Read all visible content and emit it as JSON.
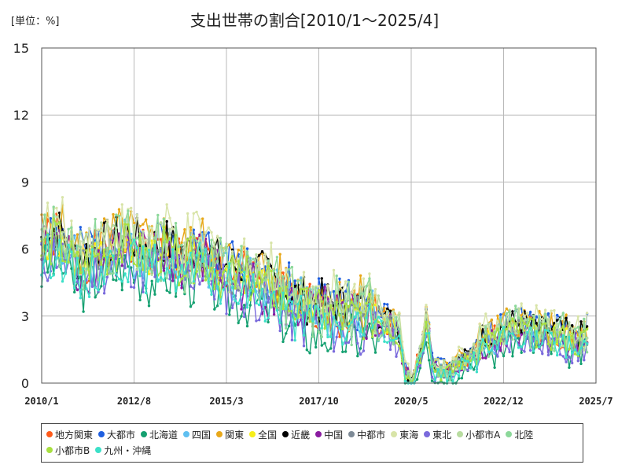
{
  "unit_label": "[単位：%]",
  "chart_data": {
    "type": "line",
    "title": "支出世帯の割合[2010/1～2025/4]",
    "xlabel": "",
    "ylabel": "",
    "x_start": "2010-01",
    "x_end": "2025-04",
    "xlim": [
      "2010-01",
      "2025-07"
    ],
    "ylim": [
      0,
      15
    ],
    "y_ticks": [
      0,
      3,
      6,
      9,
      12,
      15
    ],
    "x_ticks": [
      "2010/1",
      "2012/8",
      "2015/3",
      "2017/10",
      "2020/5",
      "2022/12",
      "2025/7"
    ],
    "grid": true,
    "legend_position": "bottom",
    "approximate_trend": [
      [
        "2010-01",
        6.0
      ],
      [
        "2010-06",
        6.6
      ],
      [
        "2011-01",
        5.2
      ],
      [
        "2011-06",
        5.6
      ],
      [
        "2012-01",
        6.0
      ],
      [
        "2012-06",
        6.2
      ],
      [
        "2013-01",
        5.6
      ],
      [
        "2013-06",
        6.0
      ],
      [
        "2014-01",
        5.4
      ],
      [
        "2014-06",
        5.8
      ],
      [
        "2015-01",
        5.0
      ],
      [
        "2015-06",
        4.8
      ],
      [
        "2016-01",
        4.6
      ],
      [
        "2016-06",
        4.3
      ],
      [
        "2017-01",
        3.6
      ],
      [
        "2017-06",
        3.3
      ],
      [
        "2018-01",
        3.2
      ],
      [
        "2018-06",
        3.0
      ],
      [
        "2019-01",
        3.1
      ],
      [
        "2019-06",
        3.0
      ],
      [
        "2020-01",
        2.2
      ],
      [
        "2020-03",
        0.4
      ],
      [
        "2020-05",
        0.2
      ],
      [
        "2020-08",
        1.2
      ],
      [
        "2020-10",
        3.6
      ],
      [
        "2020-12",
        0.8
      ],
      [
        "2021-03",
        0.5
      ],
      [
        "2021-06",
        0.5
      ],
      [
        "2021-09",
        0.9
      ],
      [
        "2021-12",
        1.1
      ],
      [
        "2022-03",
        1.5
      ],
      [
        "2022-06",
        2.0
      ],
      [
        "2022-09",
        1.9
      ],
      [
        "2023-01",
        2.4
      ],
      [
        "2023-06",
        2.5
      ],
      [
        "2024-01",
        2.1
      ],
      [
        "2024-06",
        2.2
      ],
      [
        "2025-01",
        1.8
      ],
      [
        "2025-04",
        2.1
      ]
    ],
    "series": [
      {
        "name": "地方関東",
        "color": "#ff5a1a",
        "offset": 0.1,
        "amp": 0.9,
        "seed": 1
      },
      {
        "name": "大都市",
        "color": "#1f5fe0",
        "offset": 0.5,
        "amp": 1.0,
        "seed": 2
      },
      {
        "name": "北海道",
        "color": "#14a070",
        "offset": -1.0,
        "amp": 1.0,
        "seed": 3
      },
      {
        "name": "四国",
        "color": "#5fbff0",
        "offset": 0.0,
        "amp": 1.1,
        "seed": 4
      },
      {
        "name": "関東",
        "color": "#e8a81a",
        "offset": 0.6,
        "amp": 1.0,
        "seed": 5
      },
      {
        "name": "全国",
        "color": "#f6ee1a",
        "offset": 0.0,
        "amp": 0.6,
        "seed": 6
      },
      {
        "name": "近畿",
        "color": "#000000",
        "offset": 0.4,
        "amp": 0.9,
        "seed": 7
      },
      {
        "name": "中国",
        "color": "#8a1ca0",
        "offset": -0.2,
        "amp": 1.1,
        "seed": 8
      },
      {
        "name": "中都市",
        "color": "#7d8a96",
        "offset": 0.0,
        "amp": 0.7,
        "seed": 9
      },
      {
        "name": "東海",
        "color": "#d8e4a8",
        "offset": 0.8,
        "amp": 1.1,
        "seed": 10
      },
      {
        "name": "東北",
        "color": "#7a6adc",
        "offset": -0.7,
        "amp": 1.0,
        "seed": 11
      },
      {
        "name": "小都市A",
        "color": "#b8dca0",
        "offset": 0.3,
        "amp": 1.0,
        "seed": 12
      },
      {
        "name": "北陸",
        "color": "#8cd89a",
        "offset": 0.2,
        "amp": 1.3,
        "seed": 13
      },
      {
        "name": "小都市B",
        "color": "#a8e040",
        "offset": -0.1,
        "amp": 0.9,
        "seed": 14
      },
      {
        "name": "九州・沖縄",
        "color": "#3ce0c8",
        "offset": -0.6,
        "amp": 0.9,
        "seed": 15
      }
    ]
  }
}
